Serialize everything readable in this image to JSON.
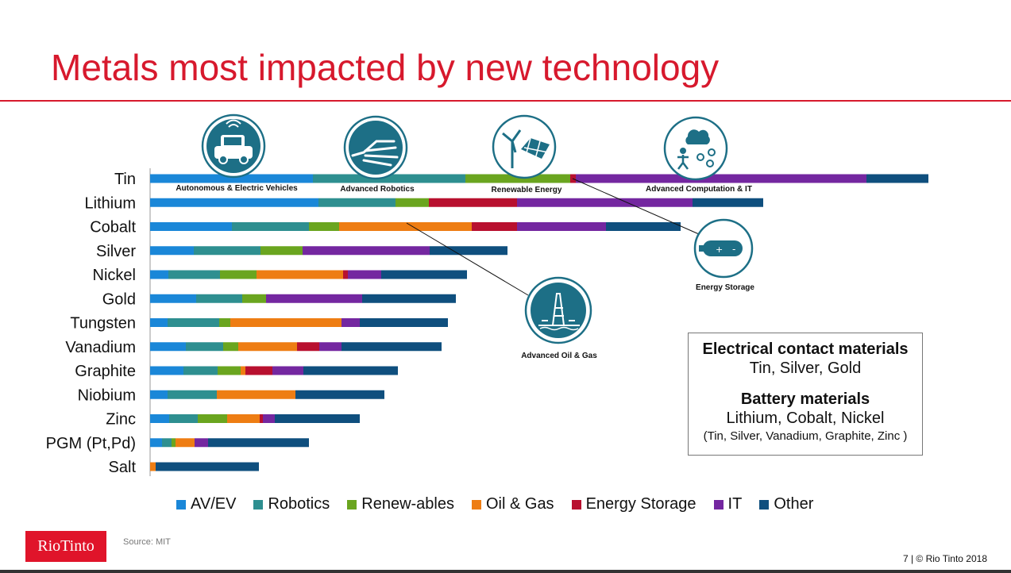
{
  "title": "Metals most impacted by new technology",
  "source": "Source: MIT",
  "footer": "7 | © Rio Tinto 2018",
  "logo": "RioTinto",
  "icons": {
    "av": "Autonomous & Electric Vehicles",
    "robotics": "Advanced Robotics",
    "renewable": "Renewable Energy",
    "computation": "Advanced Computation & IT",
    "storage": "Energy Storage",
    "oilgas": "Advanced Oil & Gas"
  },
  "info_box": {
    "heading1": "Electrical contact materials",
    "text1": "Tin, Silver, Gold",
    "heading2": "Battery materials",
    "text2": "Lithium, Cobalt, Nickel",
    "text3": "(Tin, Silver, Vanadium, Graphite, Zinc )"
  },
  "colors": {
    "AV/EV": "#1a87d8",
    "Robotics": "#2e8f90",
    "Renew-ables": "#6aa51f",
    "Oil & Gas": "#ee7d13",
    "Energy Storage": "#b8102f",
    "IT": "#7427a0",
    "Other": "#0f4f7e"
  },
  "chart_data": {
    "type": "bar",
    "orientation": "horizontal",
    "stacked": true,
    "categories": [
      "Tin",
      "Lithium",
      "Cobalt",
      "Silver",
      "Nickel",
      "Gold",
      "Tungsten",
      "Vanadium",
      "Graphite",
      "Niobium",
      "Zinc",
      "PGM (Pt,Pd)",
      "Salt"
    ],
    "series": [
      {
        "name": "AV/EV",
        "values": [
          205,
          212,
          103,
          55,
          23,
          58,
          22,
          45,
          42,
          22,
          24,
          15,
          0
        ]
      },
      {
        "name": "Robotics",
        "values": [
          192,
          97,
          97,
          84,
          65,
          58,
          65,
          47,
          43,
          62,
          36,
          12,
          0
        ]
      },
      {
        "name": "Renew-ables",
        "values": [
          132,
          42,
          38,
          53,
          46,
          30,
          14,
          19,
          29,
          0,
          37,
          5,
          0
        ]
      },
      {
        "name": "Oil & Gas",
        "values": [
          0,
          0,
          167,
          0,
          109,
          0,
          140,
          74,
          6,
          99,
          41,
          24,
          7
        ]
      },
      {
        "name": "Energy Storage",
        "values": [
          7,
          111,
          57,
          0,
          6,
          0,
          0,
          28,
          34,
          0,
          4,
          0,
          0
        ]
      },
      {
        "name": "IT",
        "values": [
          366,
          221,
          112,
          160,
          42,
          121,
          23,
          28,
          39,
          0,
          15,
          17,
          0
        ]
      },
      {
        "name": "Other",
        "values": [
          78,
          89,
          94,
          98,
          108,
          118,
          111,
          126,
          119,
          112,
          107,
          127,
          130
        ]
      }
    ],
    "legend": [
      "AV/EV",
      "Robotics",
      "Renew-ables",
      "Oil & Gas",
      "Energy Storage",
      "IT",
      "Other"
    ],
    "legend_position": "bottom",
    "grid": false
  }
}
